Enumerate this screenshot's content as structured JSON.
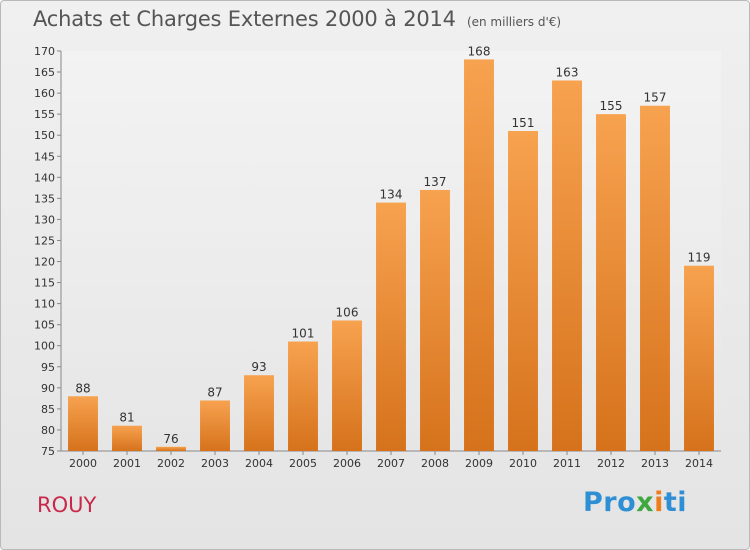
{
  "header": {
    "title": "Achats et Charges Externes 2000 à 2014",
    "unit": "(en milliers d'€)"
  },
  "footer": {
    "commune": "ROUY",
    "logo": [
      "Pro",
      "x",
      "i",
      "ti"
    ]
  },
  "colors": {
    "bar_top": "#f7a24f",
    "bar_bottom": "#d6721c",
    "commune": "#c9284b"
  },
  "chart_data": {
    "type": "bar",
    "categories": [
      "2000",
      "2001",
      "2002",
      "2003",
      "2004",
      "2005",
      "2006",
      "2007",
      "2008",
      "2009",
      "2010",
      "2011",
      "2012",
      "2013",
      "2014"
    ],
    "values": [
      88,
      81,
      76,
      87,
      93,
      101,
      106,
      134,
      137,
      168,
      151,
      163,
      155,
      157,
      119
    ],
    "ylim": [
      75,
      170
    ],
    "yticks": [
      75,
      80,
      85,
      90,
      95,
      100,
      105,
      110,
      115,
      120,
      125,
      130,
      135,
      140,
      145,
      150,
      155,
      160,
      165,
      170
    ],
    "grid": false,
    "legend": "none"
  }
}
